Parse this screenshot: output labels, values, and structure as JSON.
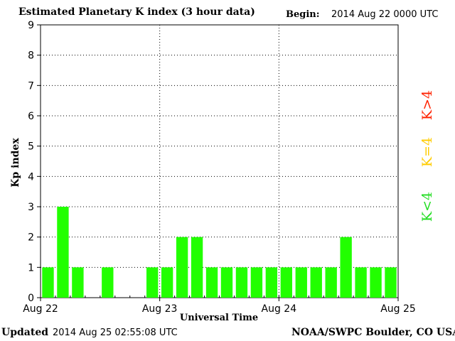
{
  "header": {
    "title": "Estimated Planetary K index (3 hour data)",
    "begin_label": "Begin:",
    "begin_value": "2014 Aug 22 0000 UTC"
  },
  "footer": {
    "updated_label": "Updated",
    "updated_value": "2014 Aug 25 02:55:08 UTC",
    "credit": "NOAA/SWPC Boulder, CO USA"
  },
  "legend": {
    "high": "K>4",
    "equal": "K=4",
    "low": "K<4"
  },
  "colors": {
    "low": "#22ff00",
    "equal": "#ffcc00",
    "high": "#ff2200",
    "grid": "#000000"
  },
  "chart_data": {
    "type": "bar",
    "title": "Estimated Planetary K index (3 hour data)",
    "xlabel": "Universal Time",
    "ylabel": "Kp index",
    "ylim": [
      0,
      9
    ],
    "yticks": [
      "0",
      "1",
      "2",
      "3",
      "4",
      "5",
      "6",
      "7",
      "8",
      "9"
    ],
    "xticks": [
      "Aug 22",
      "Aug 23",
      "Aug 24",
      "Aug 25"
    ],
    "grid": true,
    "interval_hours": 3,
    "values": [
      1,
      3,
      1,
      0,
      1,
      0,
      0,
      1,
      1,
      2,
      2,
      1,
      1,
      1,
      1,
      1,
      1,
      1,
      1,
      1,
      2,
      1,
      1,
      1
    ]
  }
}
